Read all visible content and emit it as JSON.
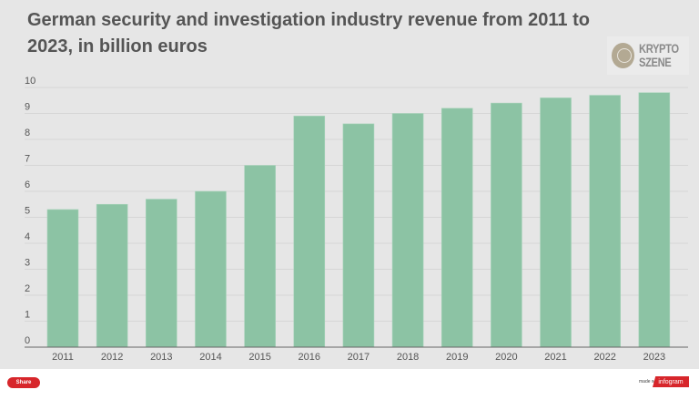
{
  "title": "German security and investigation industry revenue from 2011 to 2023, in billion euros",
  "logo": {
    "line1": "KRYPTO",
    "line2": "SZENE"
  },
  "footer": {
    "share_label": "Share",
    "made_with": "made with",
    "brand": "infogram"
  },
  "colors": {
    "bar": "#8cc3a4",
    "background": "#e6e6e6",
    "brand": "#d7262b"
  },
  "chart_data": {
    "type": "bar",
    "title": "German security and investigation industry revenue from 2011 to 2023, in billion euros",
    "xlabel": "",
    "ylabel": "",
    "categories": [
      "2011",
      "2012",
      "2013",
      "2014",
      "2015",
      "2016",
      "2017",
      "2018",
      "2019",
      "2020",
      "2021",
      "2022",
      "2023"
    ],
    "values": [
      5.3,
      5.5,
      5.7,
      6.0,
      7.0,
      8.9,
      8.6,
      9.0,
      9.2,
      9.4,
      9.6,
      9.7,
      9.8
    ],
    "ylim": [
      0,
      10
    ],
    "yticks": [
      "0",
      "1",
      "2",
      "3",
      "4",
      "5",
      "6",
      "7",
      "8",
      "9",
      "10"
    ],
    "grid": true,
    "legend": "none"
  }
}
